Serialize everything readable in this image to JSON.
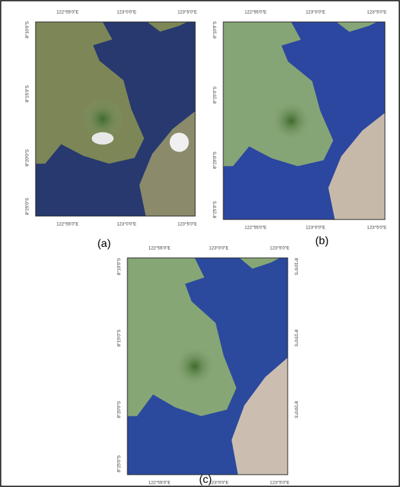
{
  "longitude_labels": [
    "122°55'0\"E",
    "123°0'0\"E",
    "123°5'0\"E"
  ],
  "latitude_labels": [
    "8°10'0\"S",
    "8°15'0\"S",
    "8°20'0\"S",
    "8°25'0\"S"
  ],
  "panels": [
    {
      "caption": "(a)"
    },
    {
      "caption": "(b)"
    },
    {
      "caption": "(c)"
    }
  ]
}
